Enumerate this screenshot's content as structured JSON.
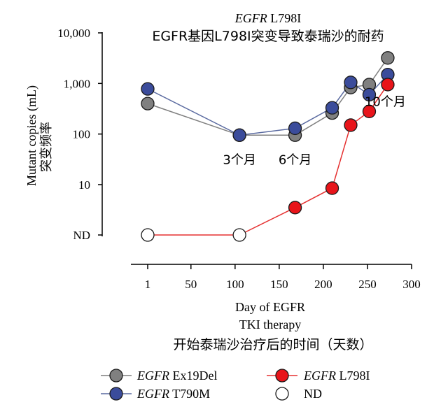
{
  "chart_data": {
    "type": "line",
    "title_italic": "EGFR",
    "title_rest": " L798I",
    "title_cn": "EGFR基因L798I突变导致泰瑞沙的耐药",
    "xlabel_line1": "Day of EGFR",
    "xlabel_line2": "TKI therapy",
    "xlabel_cn": "开始泰瑞沙治疗后的时间（天数）",
    "ylabel": "Mutant copies (mL)",
    "ylabel_cn": "突变频率",
    "x_ticks": [
      {
        "value": 1,
        "label": "1"
      },
      {
        "value": 50,
        "label": "50"
      },
      {
        "value": 100,
        "label": "100"
      },
      {
        "value": 150,
        "label": "150"
      },
      {
        "value": 200,
        "label": "200"
      },
      {
        "value": 250,
        "label": "250"
      },
      {
        "value": 300,
        "label": "300"
      }
    ],
    "y_ticks": [
      {
        "value": "ND",
        "label": "ND"
      },
      {
        "value": 10,
        "label": "10"
      },
      {
        "value": 100,
        "label": "100"
      },
      {
        "value": 1000,
        "label": "1,000"
      },
      {
        "value": 10000,
        "label": "10,000"
      }
    ],
    "xlim": [
      1,
      300
    ],
    "y_scale": "log",
    "ylim": [
      1,
      10000
    ],
    "nd_value": 1,
    "series": [
      {
        "name_italic": "EGFR",
        "name_rest": " Ex19Del",
        "color": "#7f7f7f",
        "fill": "#808080",
        "x": [
          1,
          105,
          168,
          210,
          231,
          252,
          273
        ],
        "y": [
          400,
          95,
          95,
          260,
          830,
          950,
          3200
        ]
      },
      {
        "name_italic": "EGFR",
        "name_rest": " T790M",
        "color": "#5a6aa0",
        "fill": "#3b4c9b",
        "x": [
          1,
          105,
          168,
          210,
          231,
          252,
          273
        ],
        "y": [
          780,
          95,
          130,
          330,
          1050,
          600,
          1500
        ]
      },
      {
        "name_italic": "EGFR",
        "name_rest": " L798I",
        "color": "#e53030",
        "fill": "#e8141a",
        "x": [
          1,
          105,
          168,
          210,
          231,
          252,
          273
        ],
        "y": [
          "ND",
          "ND",
          3.5,
          8.5,
          150,
          280,
          950
        ]
      }
    ],
    "nd_legend_label": "ND",
    "annotations": [
      {
        "text": "3个月",
        "x": 105,
        "y": 32
      },
      {
        "text": "6个月",
        "x": 168,
        "y": 32
      },
      {
        "text": "10个月",
        "x": 273,
        "y": 450
      }
    ],
    "legend_position": "bottom"
  }
}
